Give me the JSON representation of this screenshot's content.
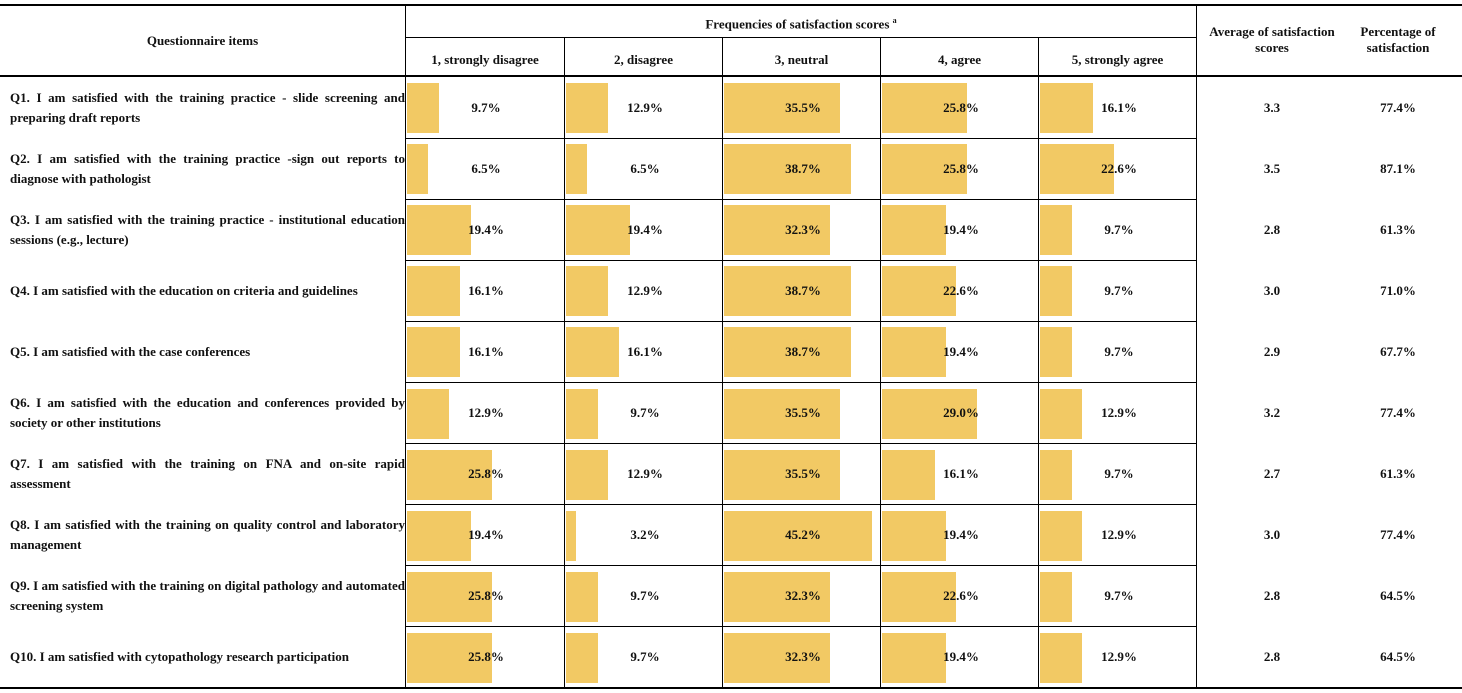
{
  "header": {
    "questionnaire_items": "Questionnaire items",
    "frequencies_title": "Frequencies of satisfaction scores",
    "frequencies_sup": "a",
    "score_columns": [
      "1, strongly disagree",
      "2, disagree",
      "3, neutral",
      "4, agree",
      "5, strongly agree"
    ],
    "average_label": "Average of satisfaction scores",
    "percentage_label": "Percentage of satisfaction"
  },
  "rows": [
    {
      "question": "Q1. I am satisfied with the training practice - slide screening and preparing draft reports",
      "values": [
        9.7,
        12.9,
        35.5,
        25.8,
        16.1
      ],
      "labels": [
        "9.7%",
        "12.9%",
        "35.5%",
        "25.8%",
        "16.1%"
      ],
      "average": "3.3",
      "percentage": "77.4%"
    },
    {
      "question": "Q2. I am satisfied with the training practice -sign out reports to diagnose with pathologist",
      "values": [
        6.5,
        6.5,
        38.7,
        25.8,
        22.6
      ],
      "labels": [
        "6.5%",
        "6.5%",
        "38.7%",
        "25.8%",
        "22.6%"
      ],
      "average": "3.5",
      "percentage": "87.1%"
    },
    {
      "question": "Q3. I am satisfied with the training practice - institutional education sessions (e.g., lecture)",
      "values": [
        19.4,
        19.4,
        32.3,
        19.4,
        9.7
      ],
      "labels": [
        "19.4%",
        "19.4%",
        "32.3%",
        "19.4%",
        "9.7%"
      ],
      "average": "2.8",
      "percentage": "61.3%"
    },
    {
      "question": "Q4. I am satisfied with the education on criteria and guidelines",
      "values": [
        16.1,
        12.9,
        38.7,
        22.6,
        9.7
      ],
      "labels": [
        "16.1%",
        "12.9%",
        "38.7%",
        "22.6%",
        "9.7%"
      ],
      "average": "3.0",
      "percentage": "71.0%"
    },
    {
      "question": "Q5. I am satisfied with the case conferences",
      "values": [
        16.1,
        16.1,
        38.7,
        19.4,
        9.7
      ],
      "labels": [
        "16.1%",
        "16.1%",
        "38.7%",
        "19.4%",
        "9.7%"
      ],
      "average": "2.9",
      "percentage": "67.7%"
    },
    {
      "question": "Q6. I am satisfied with the education and conferences provided by society or other institutions",
      "values": [
        12.9,
        9.7,
        35.5,
        29.0,
        12.9
      ],
      "labels": [
        "12.9%",
        "9.7%",
        "35.5%",
        "29.0%",
        "12.9%"
      ],
      "average": "3.2",
      "percentage": "77.4%"
    },
    {
      "question": "Q7. I am satisfied with the training on FNA and on-site rapid assessment",
      "values": [
        25.8,
        12.9,
        35.5,
        16.1,
        9.7
      ],
      "labels": [
        "25.8%",
        "12.9%",
        "35.5%",
        "16.1%",
        "9.7%"
      ],
      "average": "2.7",
      "percentage": "61.3%"
    },
    {
      "question": "Q8. I am satisfied with the training on quality control and laboratory management",
      "values": [
        19.4,
        3.2,
        45.2,
        19.4,
        12.9
      ],
      "labels": [
        "19.4%",
        "3.2%",
        "45.2%",
        "19.4%",
        "12.9%"
      ],
      "average": "3.0",
      "percentage": "77.4%"
    },
    {
      "question": "Q9. I am satisfied with the training on digital pathology and automated screening system",
      "values": [
        25.8,
        9.7,
        32.3,
        22.6,
        9.7
      ],
      "labels": [
        "25.8%",
        "9.7%",
        "32.3%",
        "22.6%",
        "9.7%"
      ],
      "average": "2.8",
      "percentage": "64.5%"
    },
    {
      "question": "Q10. I am satisfied with cytopathology research participation",
      "values": [
        25.8,
        9.7,
        32.3,
        19.4,
        12.9
      ],
      "labels": [
        "25.8%",
        "9.7%",
        "32.3%",
        "19.4%",
        "12.9%"
      ],
      "average": "2.8",
      "percentage": "64.5%"
    }
  ],
  "colors": {
    "bar": "#f2c964",
    "rule": "#000000"
  }
}
